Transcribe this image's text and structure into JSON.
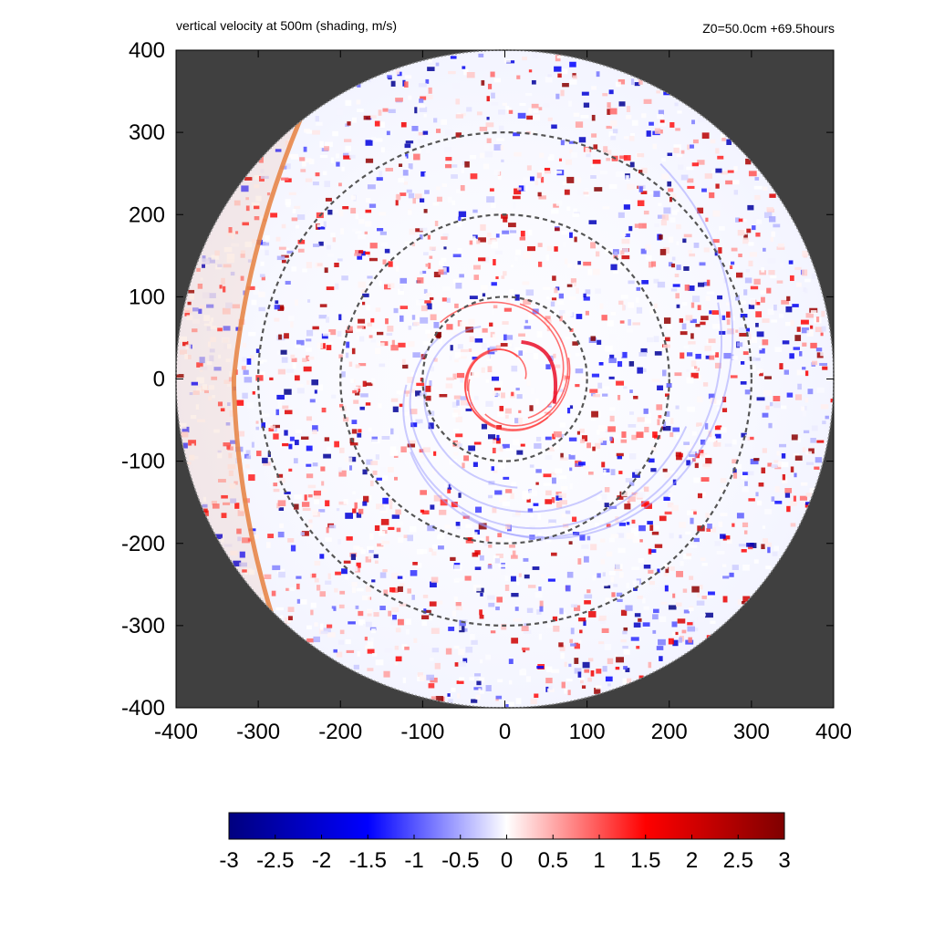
{
  "header": {
    "title": "vertical velocity at 500m (shading, m/s)",
    "info": "Z0=50.0cm  +69.5hours"
  },
  "chart_data": {
    "type": "heatmap",
    "title": "vertical velocity at 500m (shading, m/s)",
    "annotation": "Z0=50.0cm  +69.5hours",
    "xlabel": "",
    "ylabel": "",
    "xlim": [
      -400,
      400
    ],
    "ylim": [
      -400,
      400
    ],
    "x_ticks": [
      -400,
      -300,
      -200,
      -100,
      0,
      100,
      200,
      300,
      400
    ],
    "y_ticks": [
      -400,
      -300,
      -200,
      -100,
      0,
      100,
      200,
      300,
      400
    ],
    "domain_radius": 400,
    "background_outside_domain": "#404040",
    "range_rings": [
      {
        "radius": 100,
        "style": "dashed",
        "color": "#555555"
      },
      {
        "radius": 200,
        "style": "dashed",
        "color": "#555555"
      },
      {
        "radius": 300,
        "style": "dashed",
        "color": "#555555"
      }
    ],
    "colorbar": {
      "min": -3,
      "max": 3,
      "ticks": [
        -3,
        -2.5,
        -2,
        -1.5,
        -1,
        -0.5,
        0,
        0.5,
        1,
        1.5,
        2,
        2.5,
        3
      ],
      "tick_labels": [
        "-3",
        "-2.5",
        "-2",
        "-1.5",
        "-1",
        "-0.5",
        "0",
        "0.5",
        "1",
        "1.5",
        "2",
        "2.5",
        "3"
      ],
      "colors": [
        "#00007f",
        "#0000ff",
        "#ffffff",
        "#ff0000",
        "#7f0000"
      ]
    },
    "features": {
      "outer_band_color": "#e8874a",
      "updraft_color": "#e8001c",
      "downdraft_color": "#2020e0",
      "eyewall_center": [
        30,
        10
      ]
    }
  }
}
